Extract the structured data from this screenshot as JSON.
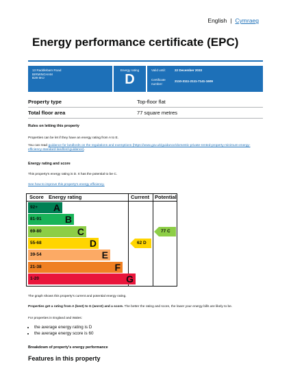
{
  "language": {
    "current": "English",
    "separator": "|",
    "alternate": "Cymraeg"
  },
  "title": "Energy performance certificate (EPC)",
  "header": {
    "address": [
      "13 Raddlebarn Road",
      "BIRMINGHAM",
      "B29 6HJ"
    ],
    "rating_label": "Energy rating",
    "rating_value": "D",
    "valid_until_label": "Valid until:",
    "valid_until_value": "22 December 2033",
    "certificate_label_line1": "Certificate",
    "certificate_label_line2": "number:",
    "certificate_value": "2110-3111-2111-7141-1609"
  },
  "summary": [
    {
      "label": "Property type",
      "value": "Top-floor flat"
    },
    {
      "label": "Total floor area",
      "value": "77 square metres"
    }
  ],
  "rules": {
    "heading": "Rules on letting this property",
    "line1": "Properties can be let if they have an energy rating from A to E.",
    "line2_prefix": "You can read ",
    "line2_link": "guidance for landlords on the regulations and exemptions (https://www.gov.uk/guidance/domestic-private-rented-property-minimum-energy-efficiency-standard-landlord-guidance)",
    "line2_suffix": "."
  },
  "rating_section": {
    "heading": "Energy rating and score",
    "text": "This property's energy rating is D. It has the potential to be C.",
    "link": "See how to improve this property's energy efficiency."
  },
  "chart_data": {
    "type": "table",
    "headers": {
      "score": "Score",
      "rating": "Energy rating",
      "current": "Current",
      "potential": "Potential"
    },
    "bands": [
      {
        "range": "92+",
        "letter": "A",
        "color": "#008054",
        "text_color": "#0b0c0c"
      },
      {
        "range": "81-91",
        "letter": "B",
        "color": "#19b459",
        "text_color": "#0b0c0c"
      },
      {
        "range": "69-80",
        "letter": "C",
        "color": "#8dce46",
        "text_color": "#0b0c0c"
      },
      {
        "range": "55-68",
        "letter": "D",
        "color": "#ffd500",
        "text_color": "#0b0c0c"
      },
      {
        "range": "39-54",
        "letter": "E",
        "color": "#fcaa65",
        "text_color": "#0b0c0c"
      },
      {
        "range": "21-38",
        "letter": "F",
        "color": "#ef8023",
        "text_color": "#0b0c0c"
      },
      {
        "range": "1-20",
        "letter": "G",
        "color": "#e9153b",
        "text_color": "#0b0c0c"
      }
    ],
    "current": {
      "score": 62,
      "letter": "D",
      "label": "62  D",
      "color": "#ffd500"
    },
    "potential": {
      "score": 77,
      "letter": "C",
      "label": "77  C",
      "color": "#8dce46"
    }
  },
  "below_chart": {
    "graph_note": "The graph shows this property's current and potential energy rating.",
    "scale_bold": "Properties get a rating from A (best) to G (worst) and a score.",
    "scale_rest": " The better the rating and score, the lower your energy bills are likely to be.",
    "england_wales": "For properties in England and Wales:",
    "bullets": [
      "the average energy rating is D",
      "the average energy score is 60"
    ],
    "breakdown_heading": "Breakdown of property's energy performance"
  },
  "features_heading": "Features in this property"
}
